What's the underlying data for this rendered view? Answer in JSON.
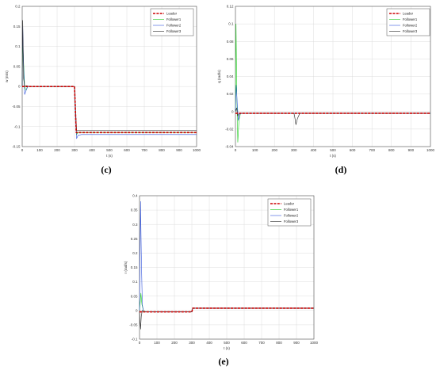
{
  "figure": {
    "legend_labels": [
      "Leader",
      "Follower1",
      "Follower2",
      "Follower3"
    ],
    "series_colors": {
      "Leader": "#cc0000",
      "Follower1": "#22cc22",
      "Follower2": "#3355dd",
      "Follower3": "#222222"
    }
  },
  "chart_data": [
    {
      "type": "line",
      "panel_label": "(c)",
      "xlabel": "t (s)",
      "ylabel": "w (m/s)",
      "xlim": [
        0,
        1000
      ],
      "ylim": [
        -0.15,
        0.2
      ],
      "xticks": [
        0,
        100,
        200,
        300,
        400,
        500,
        600,
        700,
        800,
        900,
        1000
      ],
      "yticks": [
        -0.15,
        -0.1,
        -0.05,
        0,
        0.05,
        0.1,
        0.15,
        0.2
      ],
      "ytick_labels": [
        "-0.15",
        "-0.1",
        "-0.05",
        "0",
        "0.05",
        "0.1",
        "0.15",
        "0.2"
      ],
      "legend_position": "top-right",
      "grid": true,
      "series": [
        {
          "name": "Leader",
          "x": [
            0,
            300,
            310,
            1000
          ],
          "y": [
            0,
            0,
            -0.115,
            -0.115
          ]
        },
        {
          "name": "Follower1",
          "x": [
            0,
            3,
            8,
            14,
            22,
            30,
            45,
            300,
            305,
            312,
            320,
            1000
          ],
          "y": [
            0,
            0.11,
            0.06,
            0.0,
            -0.01,
            0,
            0,
            0,
            -0.06,
            -0.12,
            -0.115,
            -0.115
          ]
        },
        {
          "name": "Follower2",
          "x": [
            0,
            3,
            8,
            14,
            22,
            32,
            50,
            300,
            305,
            312,
            320,
            340,
            1000
          ],
          "y": [
            0,
            0.15,
            0.05,
            -0.02,
            -0.01,
            0,
            0,
            0,
            -0.07,
            -0.13,
            -0.122,
            -0.12,
            -0.12
          ]
        },
        {
          "name": "Follower3",
          "x": [
            0,
            3,
            8,
            14,
            25,
            40,
            300,
            305,
            312,
            320,
            1000
          ],
          "y": [
            0,
            0.165,
            0.02,
            0.0,
            0.002,
            0,
            0,
            -0.05,
            -0.11,
            -0.11,
            -0.11
          ]
        }
      ]
    },
    {
      "type": "line",
      "panel_label": "(d)",
      "xlabel": "t (s)",
      "ylabel": "q (rad/s)",
      "xlim": [
        0,
        1000
      ],
      "ylim": [
        -0.04,
        0.12
      ],
      "xticks": [
        0,
        100,
        200,
        300,
        400,
        500,
        600,
        700,
        800,
        900,
        1000
      ],
      "yticks": [
        -0.04,
        -0.02,
        0,
        0.02,
        0.04,
        0.06,
        0.08,
        0.1,
        0.12
      ],
      "ytick_labels": [
        "-0.04",
        "-0.02",
        "0",
        "0.02",
        "0.04",
        "0.06",
        "0.08",
        "0.1",
        "0.12"
      ],
      "legend_position": "top-right",
      "grid": true,
      "series": [
        {
          "name": "Leader",
          "x": [
            0,
            1000
          ],
          "y": [
            -0.002,
            -0.002
          ]
        },
        {
          "name": "Follower1",
          "x": [
            0,
            3,
            7,
            12,
            18,
            26,
            40,
            300,
            1000
          ],
          "y": [
            0,
            0.1,
            0.02,
            -0.035,
            -0.01,
            -0.002,
            -0.002,
            -0.002,
            -0.002
          ]
        },
        {
          "name": "Follower2",
          "x": [
            0,
            4,
            9,
            15,
            22,
            32,
            50,
            300,
            1000
          ],
          "y": [
            0,
            0.03,
            0.01,
            -0.01,
            -0.003,
            -0.002,
            -0.002,
            -0.002,
            -0.002
          ]
        },
        {
          "name": "Follower3",
          "x": [
            0,
            6,
            12,
            20,
            40,
            300,
            304,
            310,
            318,
            330,
            1000
          ],
          "y": [
            0,
            0.004,
            -0.005,
            -0.002,
            -0.002,
            -0.002,
            -0.006,
            -0.015,
            -0.008,
            -0.002,
            -0.002
          ]
        }
      ]
    },
    {
      "type": "line",
      "panel_label": "(e)",
      "xlabel": "t (s)",
      "ylabel": "r (rad/s)",
      "xlim": [
        0,
        1000
      ],
      "ylim": [
        -0.1,
        0.4
      ],
      "xticks": [
        0,
        100,
        200,
        300,
        400,
        500,
        600,
        700,
        800,
        900,
        1000
      ],
      "yticks": [
        -0.1,
        -0.05,
        0,
        0.05,
        0.1,
        0.15,
        0.2,
        0.25,
        0.3,
        0.35,
        0.4
      ],
      "ytick_labels": [
        "-0.1",
        "-0.05",
        "0",
        "0.05",
        "0.1",
        "0.15",
        "0.2",
        "0.25",
        "0.3",
        "0.35",
        "0.4"
      ],
      "legend_position": "top-right",
      "grid": true,
      "series": [
        {
          "name": "Leader",
          "x": [
            0,
            300,
            305,
            1000
          ],
          "y": [
            -0.005,
            -0.005,
            0.008,
            0.008
          ]
        },
        {
          "name": "Follower1",
          "x": [
            0,
            4,
            8,
            14,
            22,
            35,
            300,
            305,
            1000
          ],
          "y": [
            0,
            0.03,
            0.06,
            0.02,
            0.0,
            -0.005,
            -0.005,
            0.008,
            0.008
          ]
        },
        {
          "name": "Follower2",
          "x": [
            0,
            3,
            6,
            10,
            16,
            24,
            40,
            300,
            305,
            1000
          ],
          "y": [
            0,
            0.2,
            0.38,
            0.2,
            0.02,
            -0.005,
            -0.005,
            -0.005,
            0.008,
            0.008
          ]
        },
        {
          "name": "Follower3",
          "x": [
            0,
            3,
            6,
            10,
            16,
            26,
            40,
            300,
            305,
            1000
          ],
          "y": [
            0,
            -0.04,
            -0.065,
            -0.02,
            0.0,
            -0.005,
            -0.005,
            -0.005,
            0.008,
            0.008
          ]
        }
      ]
    }
  ]
}
